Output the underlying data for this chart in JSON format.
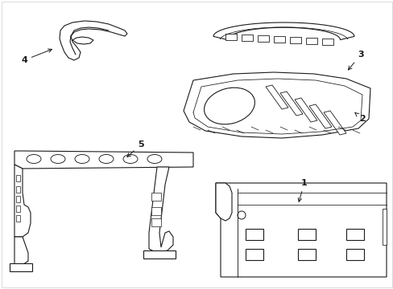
{
  "background_color": "#ffffff",
  "line_color": "#1a1a1a",
  "line_width": 0.8,
  "label_fontsize": 8,
  "figsize": [
    4.89,
    3.6
  ],
  "dpi": 100,
  "border_color": "#cccccc"
}
